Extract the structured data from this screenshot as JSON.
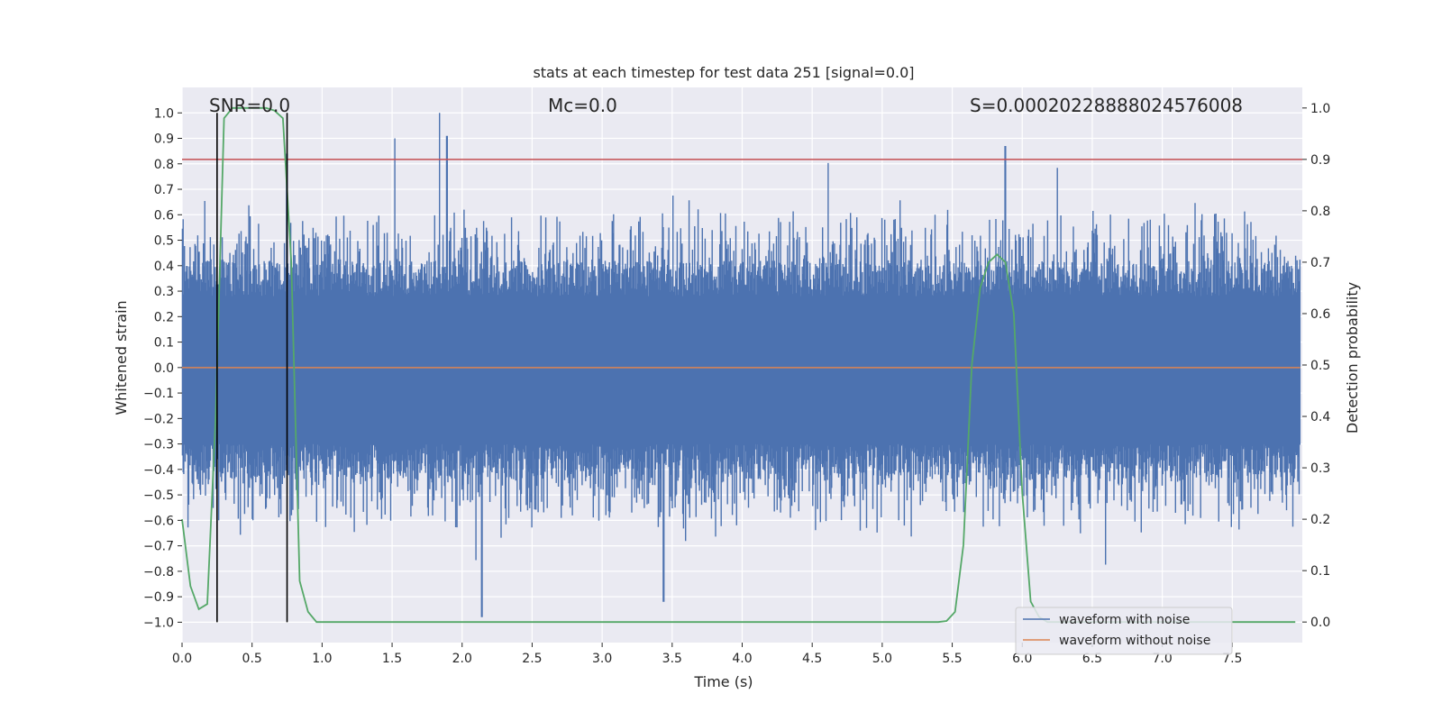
{
  "chart_data": {
    "type": "line",
    "title": "stats at each timestep for test data 251 [signal=0.0]",
    "xlabel": "Time (s)",
    "ylabel": "Whitened strain",
    "ylabel_right": "Detection probability",
    "xlim": [
      0.0,
      8.0
    ],
    "ylim": [
      -1.08,
      1.1
    ],
    "ylim_right": [
      -0.04,
      1.04
    ],
    "x_ticks": [
      "0.0",
      "0.5",
      "1.0",
      "1.5",
      "2.0",
      "2.5",
      "3.0",
      "3.5",
      "4.0",
      "4.5",
      "5.0",
      "5.5",
      "6.0",
      "6.5",
      "7.0",
      "7.5"
    ],
    "x_tick_values": [
      0.0,
      0.5,
      1.0,
      1.5,
      2.0,
      2.5,
      3.0,
      3.5,
      4.0,
      4.5,
      5.0,
      5.5,
      6.0,
      6.5,
      7.0,
      7.5
    ],
    "y_ticks": [
      "1.0",
      "0.9",
      "0.8",
      "0.7",
      "0.6",
      "0.5",
      "0.4",
      "0.3",
      "0.2",
      "0.1",
      "0.0",
      "−0.1",
      "−0.2",
      "−0.3",
      "−0.4",
      "−0.5",
      "−0.6",
      "−0.7",
      "−0.8",
      "−0.9",
      "−1.0"
    ],
    "y_tick_values": [
      1.0,
      0.9,
      0.8,
      0.7,
      0.6,
      0.5,
      0.4,
      0.3,
      0.2,
      0.1,
      0.0,
      -0.1,
      -0.2,
      -0.3,
      -0.4,
      -0.5,
      -0.6,
      -0.7,
      -0.8,
      -0.9,
      -1.0
    ],
    "y_right_ticks": [
      "1.0",
      "0.9",
      "0.8",
      "0.7",
      "0.6",
      "0.5",
      "0.4",
      "0.3",
      "0.2",
      "0.1",
      "0.0"
    ],
    "y_right_tick_values": [
      1.0,
      0.9,
      0.8,
      0.7,
      0.6,
      0.5,
      0.4,
      0.3,
      0.2,
      0.1,
      0.0
    ],
    "annotations": {
      "snr": "SNR=0.0",
      "mc": "Mc=0.0",
      "s": "S=0.00020228888024576008"
    },
    "legend": {
      "placement": "lower-right",
      "entries": [
        {
          "label": "waveform with noise",
          "color": "#4c72b0"
        },
        {
          "label": "waveform without noise",
          "color": "#dd8452"
        }
      ]
    },
    "series": [
      {
        "name": "waveform with noise",
        "color": "#4c72b0",
        "axis": "left",
        "description_range": [
          -0.98,
          1.0
        ],
        "peaks_x": [
          0.75,
          1.52,
          1.84,
          1.89,
          2.14,
          3.44,
          5.88
        ],
        "peaks_y": [
          0.84,
          0.9,
          1.0,
          0.91,
          -0.98,
          -0.92,
          0.87
        ]
      },
      {
        "name": "waveform without noise",
        "color": "#dd8452",
        "axis": "left",
        "x": [
          0.0,
          8.0
        ],
        "y": [
          0.0,
          0.0
        ]
      },
      {
        "name": "detection probability",
        "color": "#55a868",
        "axis": "right",
        "x": [
          0.0,
          0.06,
          0.12,
          0.18,
          0.24,
          0.3,
          0.36,
          0.42,
          0.48,
          0.54,
          0.6,
          0.66,
          0.72,
          0.78,
          0.84,
          0.9,
          0.96,
          1.02,
          1.5,
          2.0,
          3.0,
          4.0,
          5.0,
          5.4,
          5.46,
          5.52,
          5.58,
          5.64,
          5.7,
          5.76,
          5.82,
          5.88,
          5.94,
          6.0,
          6.06,
          6.12,
          6.18,
          6.3,
          6.6,
          7.0,
          7.5,
          7.95
        ],
        "y": [
          0.2,
          0.07,
          0.025,
          0.035,
          0.4,
          0.98,
          1.0,
          1.0,
          1.0,
          1.0,
          1.0,
          0.995,
          0.98,
          0.7,
          0.08,
          0.02,
          0.0,
          0.0,
          0.0,
          0.0,
          0.0,
          0.0,
          0.0,
          0.0,
          0.002,
          0.02,
          0.15,
          0.5,
          0.65,
          0.7,
          0.715,
          0.7,
          0.6,
          0.25,
          0.04,
          0.01,
          0.0,
          0.0,
          0.0,
          0.0,
          0.0,
          0.0
        ]
      }
    ],
    "hlines": [
      {
        "axis": "right",
        "y": 0.9,
        "color": "#c44e52"
      }
    ],
    "vlines": [
      {
        "x": 0.25,
        "color": "#000000"
      },
      {
        "x": 0.75,
        "color": "#000000"
      }
    ],
    "grid": true
  }
}
